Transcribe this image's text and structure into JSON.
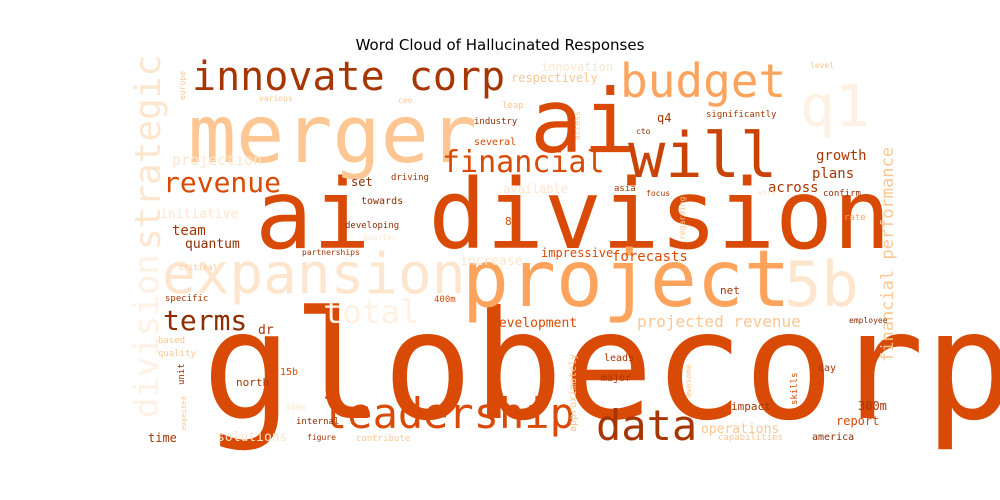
{
  "chart_data": {
    "type": "wordcloud",
    "title": "Word Cloud of Hallucinated Responses",
    "colormap": "Oranges",
    "words": [
      {
        "text": "globecorp",
        "weight": 1.0,
        "color": "#d84a05"
      },
      {
        "text": "ai division",
        "weight": 0.84,
        "color": "#d84a05"
      },
      {
        "text": "ai",
        "weight": 0.78,
        "color": "#d84a05"
      },
      {
        "text": "merger",
        "weight": 0.72,
        "color": "#fdc692"
      },
      {
        "text": "project",
        "weight": 0.7,
        "color": "#fda35c"
      },
      {
        "text": "will",
        "weight": 0.56,
        "color": "#c84305"
      },
      {
        "text": "expansion",
        "weight": 0.55,
        "color": "#fee6ce"
      },
      {
        "text": "5b",
        "weight": 0.55,
        "color": "#fee6ce"
      },
      {
        "text": "q1",
        "weight": 0.52,
        "color": "#fff1e3"
      },
      {
        "text": "budget",
        "weight": 0.5,
        "color": "#fda35c"
      },
      {
        "text": "leadership",
        "weight": 0.44,
        "color": "#d84a05"
      },
      {
        "text": "data",
        "weight": 0.44,
        "color": "#a63603"
      },
      {
        "text": "innovate corp",
        "weight": 0.42,
        "color": "#a63603"
      },
      {
        "text": "strategic",
        "weight": 0.38,
        "color": "#fee6ce"
      },
      {
        "text": "division",
        "weight": 0.38,
        "color": "#fff1e3"
      },
      {
        "text": "total",
        "weight": 0.36,
        "color": "#fff1e3"
      },
      {
        "text": "financial",
        "weight": 0.34,
        "color": "#d84a05"
      },
      {
        "text": "revenue",
        "weight": 0.31,
        "color": "#d84a05"
      },
      {
        "text": "terms",
        "weight": 0.31,
        "color": "#8c2d04"
      },
      {
        "text": "financial performance",
        "weight": 0.2,
        "color": "#fdc692"
      },
      {
        "text": "projected revenue",
        "weight": 0.18,
        "color": "#fdc692"
      },
      {
        "text": "projection",
        "weight": 0.17,
        "color": "#fee6ce"
      },
      {
        "text": "forecasts",
        "weight": 0.16,
        "color": "#d84a05"
      },
      {
        "text": "growth",
        "weight": 0.15,
        "color": "#a63603"
      },
      {
        "text": "plans",
        "weight": 0.15,
        "color": "#a63603"
      },
      {
        "text": "across",
        "weight": 0.15,
        "color": "#a63603"
      },
      {
        "text": "team",
        "weight": 0.15,
        "color": "#a63603"
      },
      {
        "text": "development",
        "weight": 0.14,
        "color": "#d84a05"
      },
      {
        "text": "initiative",
        "weight": 0.14,
        "color": "#fee6ce"
      },
      {
        "text": "increase",
        "weight": 0.14,
        "color": "#fee6ce"
      },
      {
        "text": "quantum",
        "weight": 0.13,
        "color": "#8c2d04"
      },
      {
        "text": "dr",
        "weight": 0.13,
        "color": "#a63603"
      },
      {
        "text": "impressive",
        "weight": 0.12,
        "color": "#d84a05"
      },
      {
        "text": "operations",
        "weight": 0.13,
        "color": "#fdc692"
      },
      {
        "text": "solutions",
        "weight": 0.13,
        "color": "#fee6ce"
      },
      {
        "text": "report",
        "weight": 0.12,
        "color": "#d84a05"
      },
      {
        "text": "300m",
        "weight": 0.12,
        "color": "#a63603"
      },
      {
        "text": "time",
        "weight": 0.12,
        "color": "#a63603"
      },
      {
        "text": "respectively",
        "weight": 0.12,
        "color": "#fdc692"
      },
      {
        "text": "available",
        "weight": 0.12,
        "color": "#fee6ce"
      },
      {
        "text": "innovation",
        "weight": 0.12,
        "color": "#fee6ce"
      },
      {
        "text": "q4",
        "weight": 0.11,
        "color": "#a63603"
      },
      {
        "text": "set",
        "weight": 0.11,
        "color": "#8c2d04"
      },
      {
        "text": "north",
        "weight": 0.11,
        "color": "#a63603"
      },
      {
        "text": "impact",
        "weight": 0.11,
        "color": "#a63603"
      },
      {
        "text": "net",
        "weight": 0.11,
        "color": "#a63603"
      },
      {
        "text": "8b",
        "weight": 0.11,
        "color": "#d84a05"
      },
      {
        "text": "approximately",
        "weight": 0.1,
        "color": "#fdc692"
      },
      {
        "text": "major",
        "weight": 0.1,
        "color": "#a63603"
      },
      {
        "text": "leads",
        "weight": 0.1,
        "color": "#a63603"
      },
      {
        "text": "america",
        "weight": 0.1,
        "color": "#8c2d04"
      },
      {
        "text": "capabilities",
        "weight": 0.1,
        "color": "#fdc692"
      },
      {
        "text": "towards",
        "weight": 0.09,
        "color": "#8c2d04"
      },
      {
        "text": "developing",
        "weight": 0.09,
        "color": "#8c2d04"
      },
      {
        "text": "15b",
        "weight": 0.09,
        "color": "#d84a05"
      },
      {
        "text": "400m",
        "weight": 0.09,
        "color": "#d84a05"
      },
      {
        "text": "skills",
        "weight": 0.09,
        "color": "#d84a05"
      },
      {
        "text": "day",
        "weight": 0.09,
        "color": "#a63603"
      },
      {
        "text": "industry",
        "weight": 0.09,
        "color": "#8c2d04"
      },
      {
        "text": "several",
        "weight": 0.09,
        "color": "#d84a05"
      },
      {
        "text": "significantly",
        "weight": 0.09,
        "color": "#a63603"
      },
      {
        "text": "driving",
        "weight": 0.09,
        "color": "#a63603"
      },
      {
        "text": "asia",
        "weight": 0.09,
        "color": "#a63603"
      },
      {
        "text": "focus",
        "weight": 0.08,
        "color": "#a63603"
      },
      {
        "text": "confirm",
        "weight": 0.08,
        "color": "#8c2d04"
      },
      {
        "text": "rate",
        "weight": 0.08,
        "color": "#fda35c"
      },
      {
        "text": "specific",
        "weight": 0.08,
        "color": "#a63603"
      },
      {
        "text": "based",
        "weight": 0.08,
        "color": "#fdc692"
      },
      {
        "text": "quality",
        "weight": 0.08,
        "color": "#fdc692"
      },
      {
        "text": "unit",
        "weight": 0.08,
        "color": "#a63603"
      },
      {
        "text": "employee",
        "weight": 0.08,
        "color": "#8c2d04"
      },
      {
        "text": "internal",
        "weight": 0.08,
        "color": "#8c2d04"
      },
      {
        "text": "figure",
        "weight": 0.08,
        "color": "#a63603"
      },
      {
        "text": "contribute",
        "weight": 0.08,
        "color": "#fdc692"
      },
      {
        "text": "partnerships",
        "weight": 0.08,
        "color": "#a63603"
      },
      {
        "text": "critical",
        "weight": 0.08,
        "color": "#fdc692"
      },
      {
        "text": "leap",
        "weight": 0.08,
        "color": "#fdc692"
      },
      {
        "text": "cto",
        "weight": 0.08,
        "color": "#8c2d04"
      },
      {
        "text": "access",
        "weight": 0.08,
        "color": "#fdc692"
      },
      {
        "text": "regarding",
        "weight": 0.08,
        "color": "#fdc692"
      },
      {
        "text": "ceo",
        "weight": 0.08,
        "color": "#fdc692"
      },
      {
        "text": "various",
        "weight": 0.08,
        "color": "#fdc692"
      },
      {
        "text": "europe",
        "weight": 0.08,
        "color": "#fdc692"
      },
      {
        "text": "level",
        "weight": 0.08,
        "color": "#fdc692"
      },
      {
        "text": "awesome",
        "weight": 0.08,
        "color": "#fdc692"
      },
      {
        "text": "expected",
        "weight": 0.08,
        "color": "#fdc692"
      },
      {
        "text": "quarter",
        "weight": 0.08,
        "color": "#fee6ce"
      },
      {
        "text": "work",
        "weight": 0.08,
        "color": "#fee6ce"
      },
      {
        "text": "500m",
        "weight": 0.08,
        "color": "#fee6ce"
      }
    ]
  }
}
